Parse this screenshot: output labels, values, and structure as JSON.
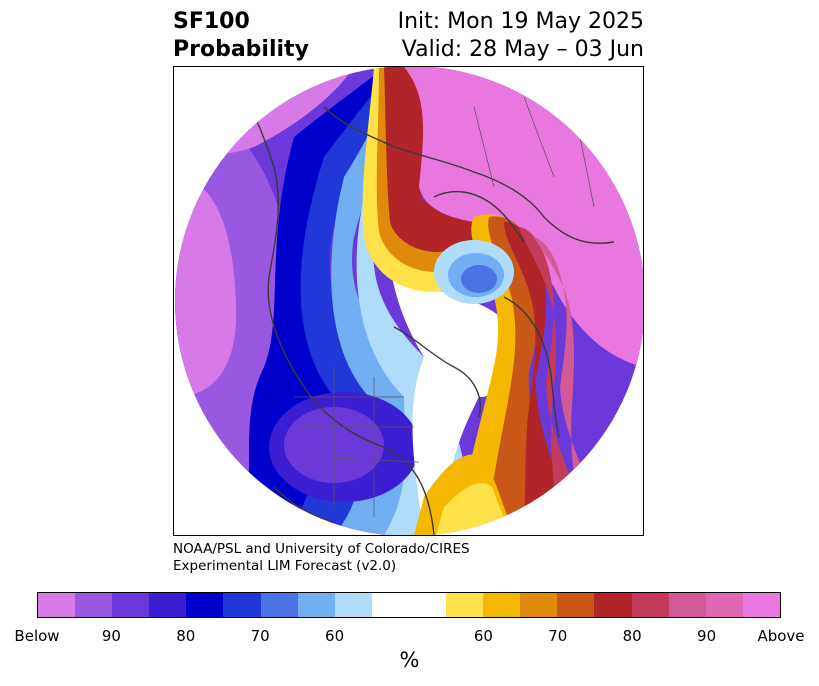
{
  "title": {
    "left_line1": "SF100",
    "left_line2": "Probability",
    "right_line1": "Init: Mon 19 May 2025",
    "right_line2": "Valid: 28 May – 03 Jun"
  },
  "credit": {
    "line1": "NOAA/PSL and University of Colorado/CIRES",
    "line2": "Experimental LIM Forecast (v2.0)"
  },
  "colorbar": {
    "unit": "%",
    "colors": {
      "below_extreme": "#d77ae8",
      "below_90": "#9a58e0",
      "below_85": "#6b39d9",
      "below_80": "#3c1ed2",
      "below_75": "#0000cc",
      "below_70": "#2038d8",
      "below_65": "#4a74e6",
      "below_60": "#72aef2",
      "below_55": "#aedcfa",
      "neutral": "#ffffff",
      "above_55": "#ffe24a",
      "above_60": "#f5b800",
      "above_65": "#e08a0c",
      "above_70": "#c85718",
      "above_75": "#b12428",
      "above_80": "#c43a5a",
      "above_85": "#d25a96",
      "above_90": "#df68b4",
      "above_extreme": "#e878df"
    },
    "ticks": [
      "Below",
      "90",
      "80",
      "70",
      "60",
      "60",
      "70",
      "80",
      "90",
      "Above"
    ]
  },
  "map": {
    "background": "#ffffff",
    "coastline_color": "#3a3a3a"
  }
}
